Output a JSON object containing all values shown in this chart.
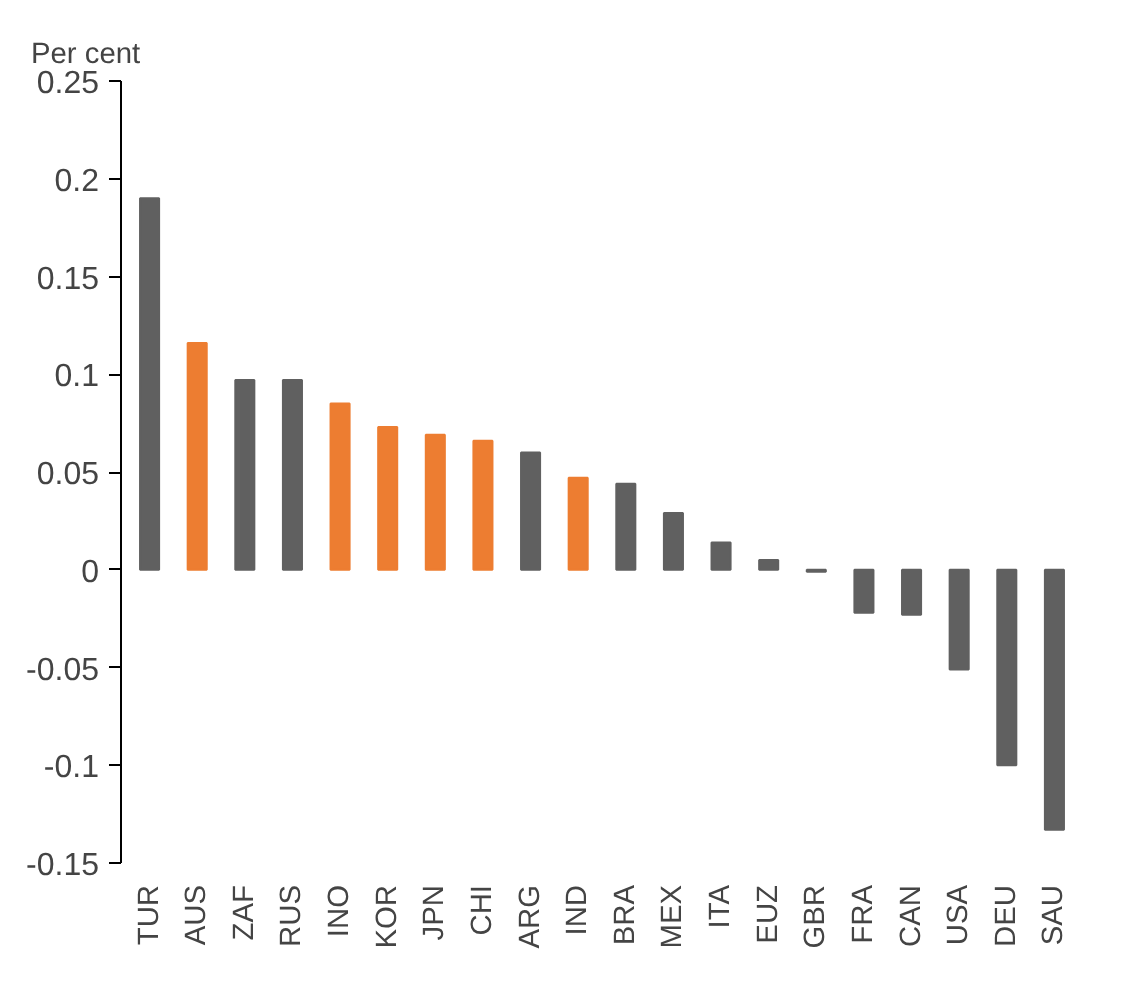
{
  "chart_data": {
    "type": "bar",
    "ylabel": "Per cent",
    "categories": [
      "TUR",
      "AUS",
      "ZAF",
      "RUS",
      "INO",
      "KOR",
      "JPN",
      "CHI",
      "ARG",
      "IND",
      "BRA",
      "MEX",
      "ITA",
      "EUZ",
      "GBR",
      "FRA",
      "CAN",
      "USA",
      "DEU",
      "SAU"
    ],
    "values": [
      0.19,
      0.116,
      0.097,
      0.097,
      0.085,
      0.073,
      0.069,
      0.066,
      0.06,
      0.047,
      0.044,
      0.029,
      0.014,
      0.005,
      -0.001,
      -0.022,
      -0.023,
      -0.051,
      -0.1,
      -0.133
    ],
    "colors": [
      "#606060",
      "#ed7d31",
      "#606060",
      "#606060",
      "#ed7d31",
      "#ed7d31",
      "#ed7d31",
      "#ed7d31",
      "#606060",
      "#ed7d31",
      "#606060",
      "#606060",
      "#606060",
      "#606060",
      "#606060",
      "#606060",
      "#606060",
      "#606060",
      "#606060",
      "#606060"
    ],
    "ylim": [
      -0.15,
      0.25
    ],
    "yticks": [
      -0.15,
      -0.1,
      -0.05,
      0,
      0.05,
      0.1,
      0.15,
      0.2,
      0.25
    ],
    "grid": false
  }
}
